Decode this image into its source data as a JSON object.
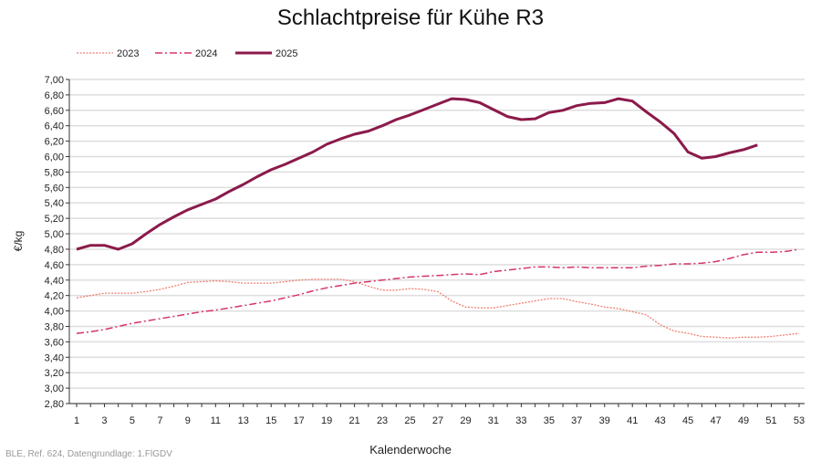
{
  "chart_data": {
    "type": "line",
    "title": "Schlachtpreise für Kühe R3",
    "xlabel": "Kalenderwoche",
    "ylabel": "€/kg",
    "ylim": [
      2.8,
      7.0
    ],
    "ystep": 0.2,
    "xlim": [
      1,
      53
    ],
    "xticks": [
      1,
      3,
      5,
      7,
      9,
      11,
      13,
      15,
      17,
      19,
      21,
      23,
      25,
      27,
      29,
      31,
      33,
      35,
      37,
      39,
      41,
      43,
      45,
      47,
      49,
      51,
      53
    ],
    "grid": "horizontal",
    "legend_position": "top-left",
    "series": [
      {
        "name": "2023",
        "style": "dotted",
        "color": "#f08070",
        "values": [
          4.17,
          4.2,
          4.23,
          4.23,
          4.23,
          4.25,
          4.28,
          4.32,
          4.37,
          4.38,
          4.39,
          4.38,
          4.36,
          4.36,
          4.36,
          4.38,
          4.4,
          4.41,
          4.41,
          4.41,
          4.38,
          4.32,
          4.27,
          4.27,
          4.29,
          4.28,
          4.25,
          4.13,
          4.05,
          4.04,
          4.04,
          4.07,
          4.1,
          4.13,
          4.16,
          4.16,
          4.12,
          4.09,
          4.05,
          4.03,
          3.99,
          3.95,
          3.82,
          3.74,
          3.71,
          3.67,
          3.66,
          3.65,
          3.66,
          3.66,
          3.67,
          3.69,
          3.71
        ]
      },
      {
        "name": "2024",
        "style": "dashdot",
        "color": "#d6336c",
        "values": [
          3.71,
          3.73,
          3.76,
          3.8,
          3.84,
          3.87,
          3.9,
          3.93,
          3.96,
          3.99,
          4.01,
          4.04,
          4.07,
          4.1,
          4.13,
          4.17,
          4.21,
          4.26,
          4.3,
          4.33,
          4.36,
          4.38,
          4.4,
          4.42,
          4.44,
          4.45,
          4.46,
          4.47,
          4.48,
          4.47,
          4.51,
          4.53,
          4.55,
          4.57,
          4.57,
          4.56,
          4.57,
          4.56,
          4.56,
          4.56,
          4.56,
          4.58,
          4.59,
          4.61,
          4.61,
          4.62,
          4.64,
          4.68,
          4.73,
          4.76,
          4.76,
          4.77,
          4.8
        ]
      },
      {
        "name": "2025",
        "style": "solid",
        "color": "#8b1a4a",
        "values": [
          4.8,
          4.85,
          4.85,
          4.8,
          4.87,
          5.0,
          5.12,
          5.22,
          5.31,
          5.38,
          5.45,
          5.55,
          5.64,
          5.74,
          5.83,
          5.9,
          5.98,
          6.06,
          6.16,
          6.23,
          6.29,
          6.33,
          6.4,
          6.48,
          6.54,
          6.61,
          6.68,
          6.75,
          6.74,
          6.7,
          6.61,
          6.52,
          6.48,
          6.49,
          6.57,
          6.6,
          6.66,
          6.69,
          6.7,
          6.75,
          6.72,
          6.58,
          6.45,
          6.3,
          6.06,
          5.98,
          6.0,
          6.05,
          6.09,
          6.15
        ]
      }
    ]
  },
  "footnote": "BLE, Ref. 624, Datengrundlage: 1.FlGDV"
}
